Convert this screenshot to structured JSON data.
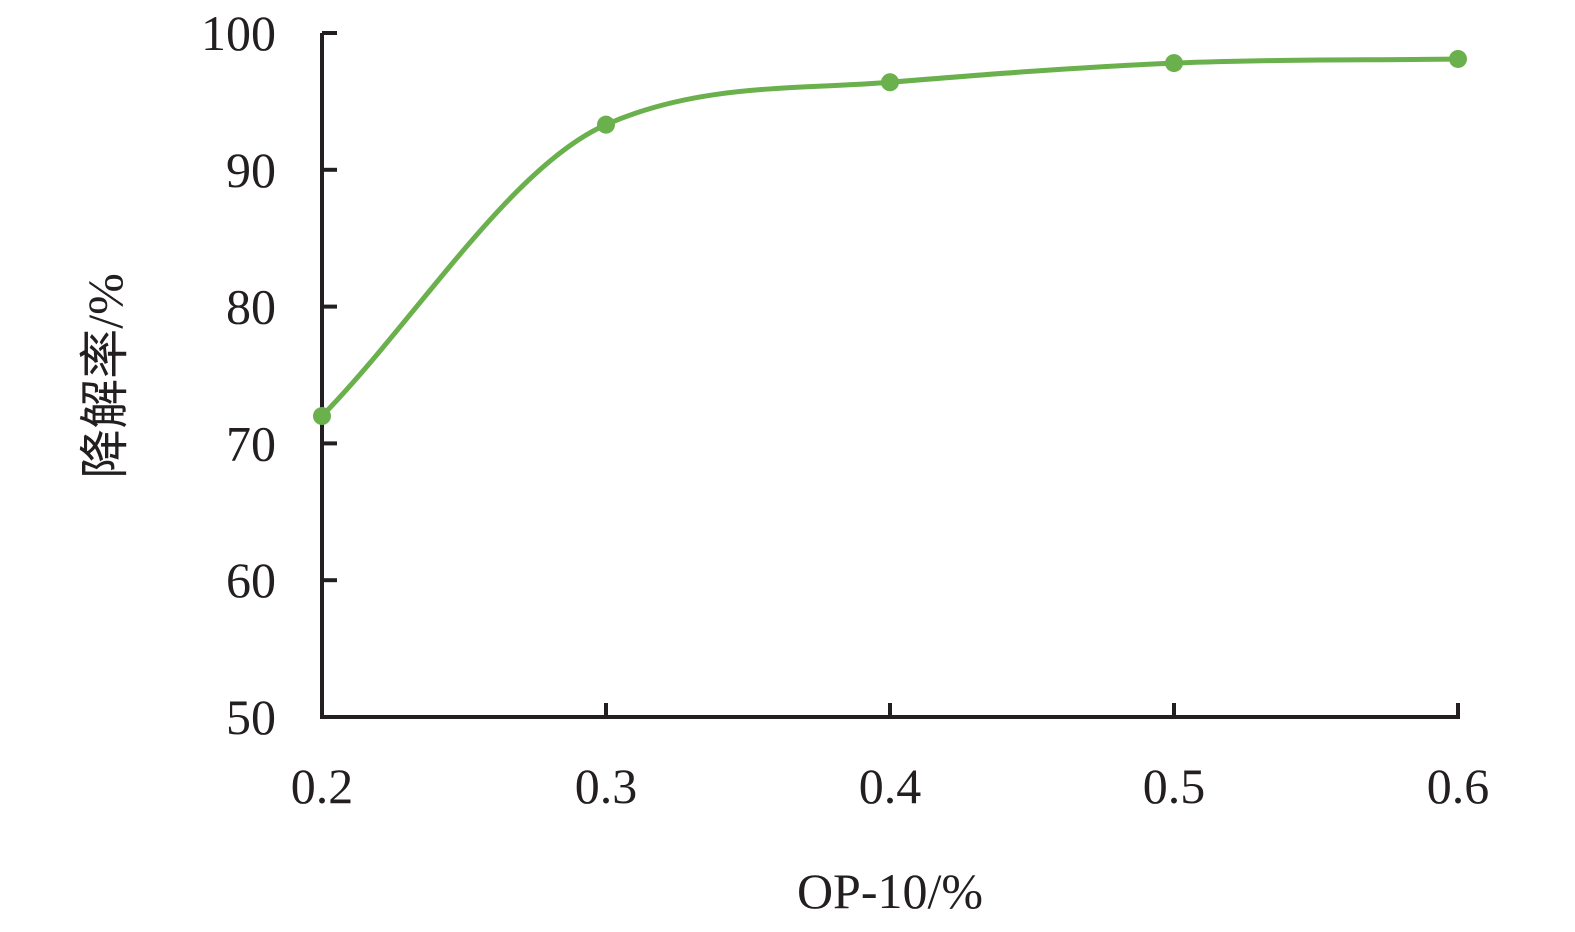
{
  "chart_data": {
    "type": "line",
    "title": "",
    "xlabel": "OP-10/%",
    "ylabel": "降解率/%",
    "x": [
      0.2,
      0.3,
      0.4,
      0.5,
      0.6
    ],
    "x_tick_labels": [
      "0.2",
      "0.3",
      "0.4",
      "0.5",
      "0.6"
    ],
    "y_tick_labels": [
      "50",
      "60",
      "70",
      "80",
      "90",
      "100"
    ],
    "y_ticks": [
      50,
      60,
      70,
      80,
      90,
      100
    ],
    "xlim": [
      0.2,
      0.6
    ],
    "ylim": [
      50,
      100
    ],
    "series": [
      {
        "values": [
          72.0,
          93.3,
          96.4,
          97.8,
          98.1
        ],
        "color": "#6ab04c",
        "smooth": true,
        "markers": true
      }
    ],
    "grid": false,
    "legend": "none"
  }
}
